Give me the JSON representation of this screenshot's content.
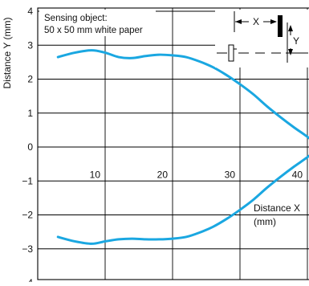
{
  "chart_data": {
    "type": "line",
    "ylabel": "Distance Y (mm)",
    "xlabel": "Distance X\n(mm)",
    "xlim": [
      0,
      43
    ],
    "ylim": [
      -4,
      4
    ],
    "xticks": [
      10,
      20,
      30,
      40
    ],
    "yticks": [
      4,
      3,
      2,
      1,
      0,
      -1,
      -2,
      -3,
      -4
    ],
    "ytick_labels": [
      "4",
      "3",
      "2",
      "1",
      "0",
      "−1",
      "−2",
      "−3",
      "−4"
    ],
    "grid": true,
    "line_color": "#1aa7e1",
    "annotation": {
      "lines": [
        "Sensing object:",
        "50 x 50 mm white paper"
      ]
    },
    "inset_diagram": {
      "x_label": "X",
      "y_label": "Y"
    },
    "series": [
      {
        "x": [
          3,
          5.5,
          8,
          10,
          12,
          14,
          16,
          18,
          20,
          22,
          24,
          26,
          28,
          30,
          32,
          34,
          36,
          38,
          40,
          41.5,
          43
        ],
        "y": [
          2.65,
          2.78,
          2.85,
          2.78,
          2.65,
          2.62,
          2.68,
          2.72,
          2.7,
          2.65,
          2.52,
          2.35,
          2.12,
          1.85,
          1.55,
          1.2,
          0.88,
          0.58,
          0.3,
          0.05,
          -0.25
        ]
      },
      {
        "x": [
          3,
          5.5,
          8,
          10,
          12,
          14,
          16,
          18,
          20,
          22,
          24,
          26,
          28,
          30,
          32,
          34,
          36,
          38,
          40,
          41.5,
          43
        ],
        "y": [
          -2.65,
          -2.78,
          -2.85,
          -2.78,
          -2.72,
          -2.7,
          -2.72,
          -2.72,
          -2.7,
          -2.65,
          -2.52,
          -2.35,
          -2.12,
          -1.85,
          -1.55,
          -1.2,
          -0.88,
          -0.58,
          -0.3,
          -0.05,
          0.25
        ]
      }
    ]
  }
}
